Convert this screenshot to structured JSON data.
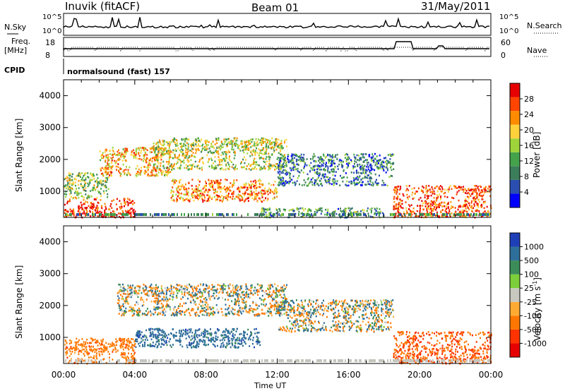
{
  "header": {
    "station": "Inuvik (fitACF)",
    "beam": "Beam 01",
    "date": "31/May/2011"
  },
  "top_panels": {
    "nsky_label": "N.Sky",
    "nsky_tick_hi": "10^5",
    "nsky_tick_lo": "10^0",
    "nsearch_label": "N.Search",
    "nsearch_tick_hi": "10^5",
    "nsearch_tick_lo": "10^0",
    "freq_label_1": "Freq.",
    "freq_label_2": "[MHz]",
    "freq_tick_hi": "18",
    "freq_tick_lo": "8",
    "nave_label": "Nave",
    "nave_tick_hi": "60",
    "nave_tick_lo": "0",
    "cpid_label": "CPID",
    "cpid_value": "normalsound (fast) 157"
  },
  "colors": {
    "power": [
      "#0000ff",
      "#2a4fb0",
      "#3c7d5a",
      "#44a24a",
      "#9ed43a",
      "#ffd23c",
      "#ff8c00",
      "#ff4400",
      "#e60000"
    ],
    "velocity_pos": [
      "#1f3fb8",
      "#2e6e9a",
      "#3c8c5a",
      "#7ccf3a"
    ],
    "velocity_neg": [
      "#c8c8c0",
      "#ffaa33",
      "#ff7700",
      "#ff3300",
      "#e60000"
    ],
    "ground": "#c4c4bc"
  },
  "chart_data": [
    {
      "type": "heatmap",
      "name_in_image": "Power",
      "xlabel": "Time UT",
      "ylabel": "Slant Range [km]",
      "xlim": [
        "00:00",
        "24:00"
      ],
      "ylim": [
        180,
        4500
      ],
      "x_ticks": [
        "00:00",
        "04:00",
        "08:00",
        "12:00",
        "16:00",
        "20:00",
        "00:00"
      ],
      "y_ticks": [
        1000,
        2000,
        3000,
        4000
      ],
      "colorbar": {
        "label": "Power [dB]",
        "ticks": [
          "4",
          "8",
          "12",
          "16",
          "20",
          "24",
          "28"
        ],
        "range": [
          0,
          30
        ]
      },
      "bands": [
        {
          "t_start": 0.0,
          "t_end": 4.0,
          "range_low": 200,
          "range_high": 800,
          "level": 27
        },
        {
          "t_start": 0.0,
          "t_end": 2.5,
          "range_low": 800,
          "range_high": 1600,
          "level": 14
        },
        {
          "t_start": 2.0,
          "t_end": 6.0,
          "range_low": 1500,
          "range_high": 2400,
          "level": 20
        },
        {
          "t_start": 5.0,
          "t_end": 12.5,
          "range_low": 1700,
          "range_high": 2700,
          "level": 16
        },
        {
          "t_start": 6.0,
          "t_end": 12.0,
          "range_low": 700,
          "range_high": 1400,
          "level": 22
        },
        {
          "t_start": 12.0,
          "t_end": 18.5,
          "range_low": 1200,
          "range_high": 2200,
          "level": 8
        },
        {
          "t_start": 18.5,
          "t_end": 24.0,
          "range_low": 200,
          "range_high": 1200,
          "level": 25
        },
        {
          "t_start": 11.0,
          "t_end": 18.0,
          "range_low": 200,
          "range_high": 500,
          "level": 10
        }
      ]
    },
    {
      "type": "heatmap",
      "name_in_image": "Velocity",
      "xlabel": "Time UT",
      "ylabel": "Slant Range [km]",
      "xlim": [
        "00:00",
        "24:00"
      ],
      "ylim": [
        180,
        4500
      ],
      "x_ticks": [
        "00:00",
        "04:00",
        "08:00",
        "12:00",
        "16:00",
        "20:00",
        "00:00"
      ],
      "y_ticks": [
        1000,
        2000,
        3000,
        4000
      ],
      "colorbar": {
        "label": "Velocity [m s^-1]",
        "ticks": [
          "1000",
          "500",
          "100",
          "25",
          "-25",
          "-100",
          "-500",
          "-1000"
        ],
        "range": [
          -1000,
          1000
        ]
      },
      "bands": [
        {
          "t_start": 0.0,
          "t_end": 4.0,
          "range_low": 200,
          "range_high": 1000,
          "level": -300
        },
        {
          "t_start": 3.0,
          "t_end": 12.5,
          "range_low": 1700,
          "range_high": 2700,
          "level": 0
        },
        {
          "t_start": 4.0,
          "t_end": 11.0,
          "range_low": 700,
          "range_high": 1300,
          "level": 300
        },
        {
          "t_start": 12.0,
          "t_end": 18.5,
          "range_low": 1200,
          "range_high": 2200,
          "level": 0
        },
        {
          "t_start": 18.5,
          "t_end": 24.0,
          "range_low": 200,
          "range_high": 1200,
          "level": -500
        }
      ]
    }
  ]
}
